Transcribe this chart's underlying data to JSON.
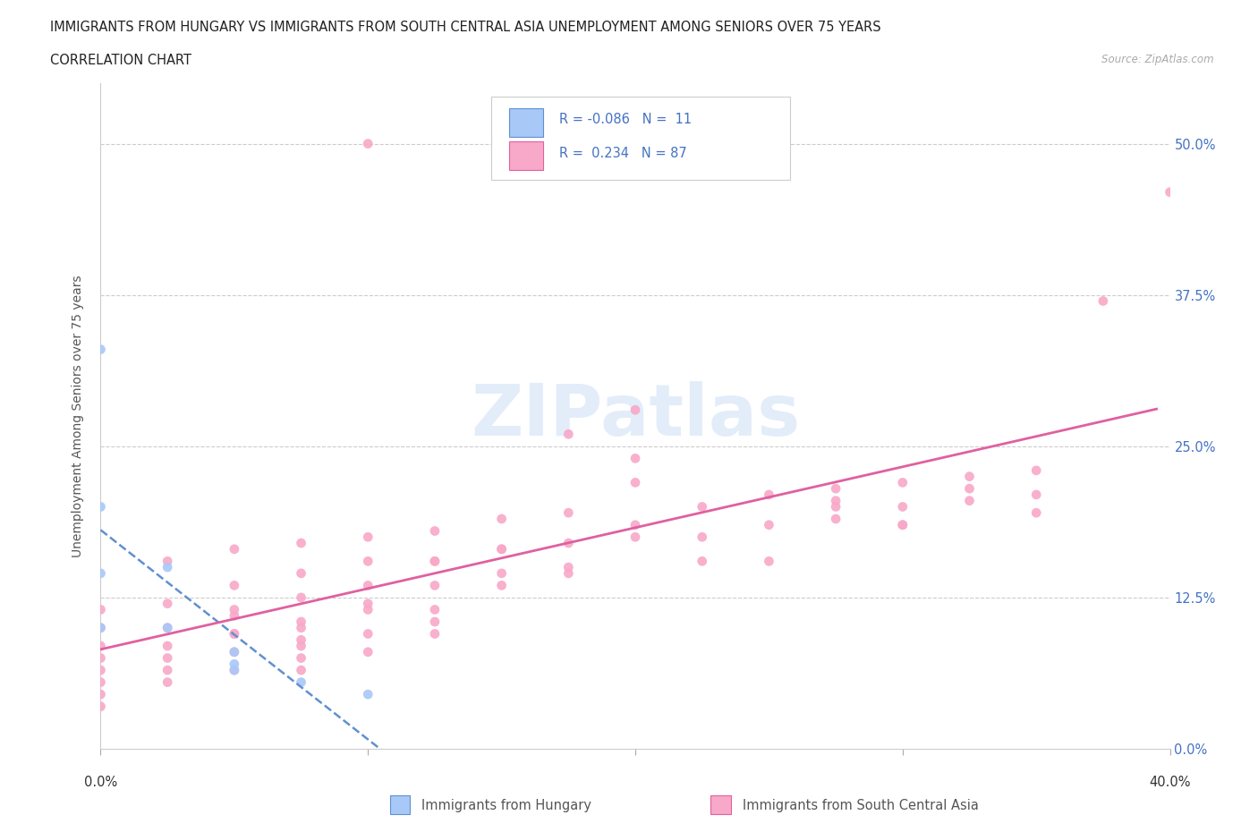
{
  "title_line1": "IMMIGRANTS FROM HUNGARY VS IMMIGRANTS FROM SOUTH CENTRAL ASIA UNEMPLOYMENT AMONG SENIORS OVER 75 YEARS",
  "title_line2": "CORRELATION CHART",
  "source_text": "Source: ZipAtlas.com",
  "ylabel": "Unemployment Among Seniors over 75 years",
  "xlim": [
    0.0,
    0.4
  ],
  "ylim": [
    0.0,
    0.55
  ],
  "yticks": [
    0.0,
    0.125,
    0.25,
    0.375,
    0.5
  ],
  "ytick_labels": [
    "0.0%",
    "12.5%",
    "25.0%",
    "37.5%",
    "50.0%"
  ],
  "xticks": [
    0.0,
    0.1,
    0.2,
    0.3,
    0.4
  ],
  "color_hungary": "#a8c8f8",
  "color_asia": "#f8a8c8",
  "line_color_hungary": "#6090d0",
  "line_color_asia": "#e060a0",
  "watermark": "ZIPatlas",
  "hungary_x": [
    0.0,
    0.0,
    0.0,
    0.0,
    0.025,
    0.025,
    0.05,
    0.05,
    0.05,
    0.075,
    0.1
  ],
  "hungary_y": [
    0.33,
    0.2,
    0.145,
    0.1,
    0.15,
    0.1,
    0.08,
    0.065,
    0.07,
    0.055,
    0.045
  ],
  "asia_x": [
    0.0,
    0.0,
    0.0,
    0.0,
    0.0,
    0.0,
    0.0,
    0.0,
    0.025,
    0.025,
    0.025,
    0.025,
    0.025,
    0.025,
    0.025,
    0.05,
    0.05,
    0.05,
    0.05,
    0.05,
    0.05,
    0.075,
    0.075,
    0.075,
    0.075,
    0.075,
    0.075,
    0.075,
    0.1,
    0.1,
    0.1,
    0.1,
    0.1,
    0.1,
    0.125,
    0.125,
    0.125,
    0.125,
    0.125,
    0.15,
    0.15,
    0.15,
    0.175,
    0.175,
    0.175,
    0.2,
    0.2,
    0.2,
    0.225,
    0.225,
    0.225,
    0.25,
    0.25,
    0.275,
    0.275,
    0.3,
    0.3,
    0.325,
    0.325,
    0.35,
    0.35,
    0.375,
    0.4,
    0.175,
    0.2,
    0.275,
    0.3,
    0.1,
    0.125,
    0.15,
    0.2,
    0.25,
    0.15,
    0.175,
    0.275,
    0.3,
    0.05,
    0.075,
    0.1,
    0.125,
    0.325,
    0.35,
    0.05,
    0.075
  ],
  "asia_y": [
    0.115,
    0.1,
    0.085,
    0.075,
    0.065,
    0.055,
    0.045,
    0.035,
    0.155,
    0.12,
    0.1,
    0.085,
    0.075,
    0.065,
    0.055,
    0.165,
    0.135,
    0.115,
    0.095,
    0.08,
    0.065,
    0.17,
    0.145,
    0.125,
    0.105,
    0.09,
    0.075,
    0.065,
    0.175,
    0.155,
    0.135,
    0.115,
    0.095,
    0.08,
    0.18,
    0.155,
    0.135,
    0.115,
    0.095,
    0.19,
    0.165,
    0.145,
    0.195,
    0.17,
    0.15,
    0.28,
    0.22,
    0.185,
    0.2,
    0.175,
    0.155,
    0.21,
    0.185,
    0.215,
    0.19,
    0.22,
    0.2,
    0.225,
    0.205,
    0.23,
    0.21,
    0.37,
    0.46,
    0.26,
    0.24,
    0.2,
    0.185,
    0.5,
    0.155,
    0.135,
    0.175,
    0.155,
    0.165,
    0.145,
    0.205,
    0.185,
    0.11,
    0.1,
    0.12,
    0.105,
    0.215,
    0.195,
    0.095,
    0.085
  ]
}
